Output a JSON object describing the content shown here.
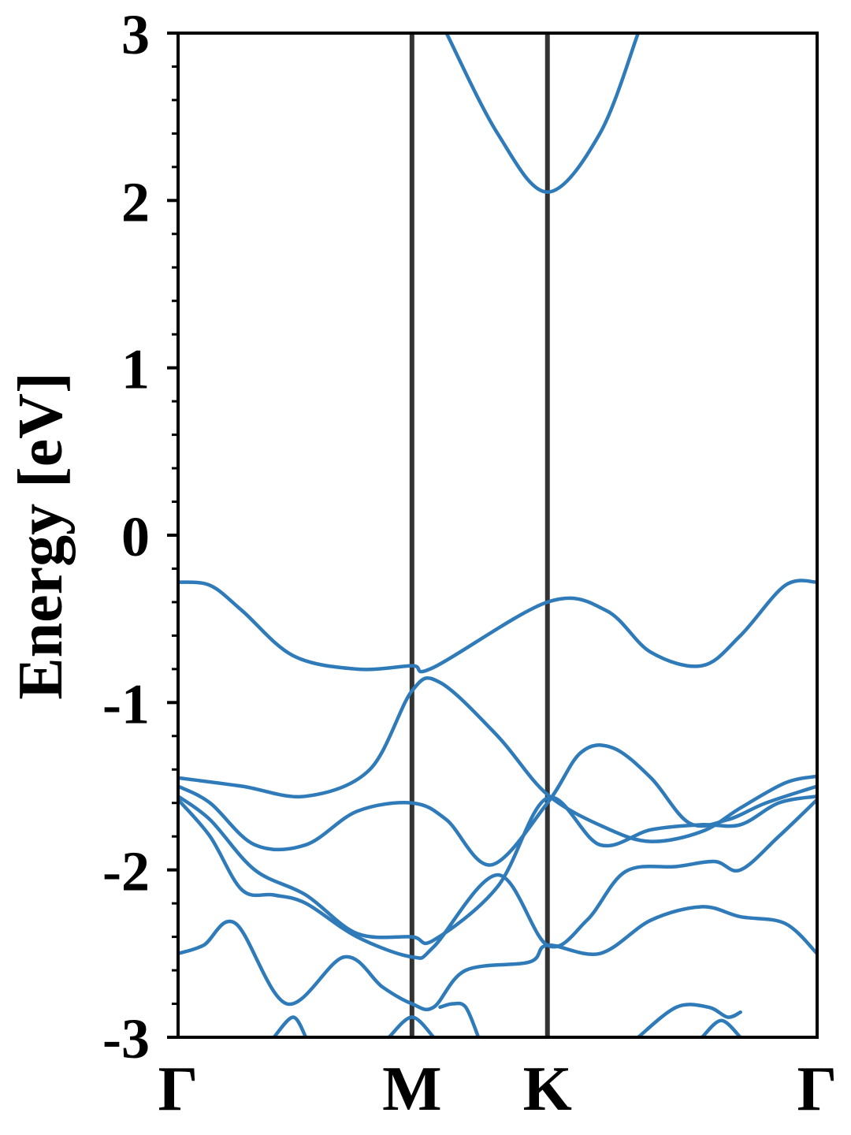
{
  "chart_data": {
    "type": "line",
    "title": "",
    "xlabel": "",
    "ylabel": "Energy [eV]",
    "ylim": [
      -3,
      3
    ],
    "y_ticks": [
      "3",
      "2",
      "1",
      "0",
      "-1",
      "-2",
      "-3"
    ],
    "k_path": [
      {
        "label": "Γ",
        "pos": 0.0
      },
      {
        "label": "M",
        "pos": 0.366
      },
      {
        "label": "K",
        "pos": 0.578
      },
      {
        "label": "Γ",
        "pos": 1.0
      }
    ],
    "grid": false,
    "colors": {
      "bands": "#2f7bba",
      "k_lines": "#333333",
      "frame": "#000000"
    },
    "series": [
      {
        "x": [
          0,
          0.05,
          0.1,
          0.18,
          0.28,
          0.366,
          0.4,
          0.578,
          0.67,
          0.74,
          0.82,
          0.88,
          0.95,
          1.0
        ],
        "values": [
          -0.28,
          -0.3,
          -0.45,
          -0.72,
          -0.8,
          -0.78,
          -0.79,
          -0.4,
          -0.45,
          -0.7,
          -0.78,
          -0.6,
          -0.3,
          -0.28
        ]
      },
      {
        "x": [
          0,
          0.1,
          0.2,
          0.3,
          0.366,
          0.41,
          0.5,
          0.578,
          0.67,
          0.74,
          0.82,
          0.88,
          0.95,
          1.0
        ],
        "values": [
          -1.45,
          -1.5,
          -1.56,
          -1.4,
          -0.93,
          -0.88,
          -1.2,
          -1.55,
          -1.75,
          -1.83,
          -1.77,
          -1.63,
          -1.48,
          -1.44
        ]
      },
      {
        "x": [
          0,
          0.05,
          0.12,
          0.2,
          0.28,
          0.366,
          0.42,
          0.49,
          0.578,
          0.63,
          0.68,
          0.74,
          0.8,
          0.86,
          0.92,
          1.0
        ],
        "values": [
          -1.5,
          -1.6,
          -1.85,
          -1.85,
          -1.65,
          -1.6,
          -1.7,
          -1.97,
          -1.6,
          -1.3,
          -1.27,
          -1.45,
          -1.72,
          -1.7,
          -1.6,
          -1.5
        ]
      },
      {
        "x": [
          0,
          0.05,
          0.12,
          0.2,
          0.28,
          0.366,
          0.4,
          0.5,
          0.578,
          0.66,
          0.74,
          0.82,
          0.88,
          0.94,
          1.0
        ],
        "values": [
          -1.56,
          -1.7,
          -2.0,
          -2.15,
          -2.38,
          -2.4,
          -2.42,
          -2.1,
          -1.57,
          -1.85,
          -1.76,
          -1.73,
          -1.73,
          -1.6,
          -1.56
        ]
      },
      {
        "x": [
          0,
          0.05,
          0.1,
          0.15,
          0.2,
          0.28,
          0.366,
          0.4,
          0.5,
          0.578,
          0.64,
          0.7,
          0.78,
          0.84,
          0.88,
          0.94,
          1.0
        ],
        "values": [
          -1.58,
          -1.8,
          -2.12,
          -2.15,
          -2.2,
          -2.4,
          -2.52,
          -2.46,
          -2.03,
          -2.45,
          -2.3,
          -2.01,
          -1.98,
          -1.95,
          -2.0,
          -1.8,
          -1.58
        ]
      },
      {
        "x": [
          0,
          0.04,
          0.09,
          0.17,
          0.26,
          0.32,
          0.366,
          0.4,
          0.45,
          0.55,
          0.578,
          0.66,
          0.74,
          0.82,
          0.88,
          0.95,
          1.0
        ],
        "values": [
          -2.5,
          -2.45,
          -2.32,
          -2.8,
          -2.52,
          -2.7,
          -2.8,
          -2.82,
          -2.6,
          -2.55,
          -2.45,
          -2.5,
          -2.3,
          -2.22,
          -2.28,
          -2.32,
          -2.5
        ]
      },
      {
        "x": [
          0.15,
          0.18,
          0.2
        ],
        "values": [
          -3.0,
          -2.88,
          -3.0
        ]
      },
      {
        "x": [
          0.33,
          0.366,
          0.4
        ],
        "values": [
          -3.0,
          -2.88,
          -3.0
        ]
      },
      {
        "x": [
          0.72,
          0.78,
          0.83,
          0.86,
          0.88
        ],
        "values": [
          -3.0,
          -2.82,
          -2.82,
          -2.88,
          -2.85
        ]
      },
      {
        "x": [
          0.82,
          0.85,
          0.88
        ],
        "values": [
          -3.0,
          -2.9,
          -3.0
        ]
      },
      {
        "x": [
          0.41,
          0.43,
          0.45,
          0.47
        ],
        "values": [
          -2.82,
          -2.8,
          -2.82,
          -3.0
        ]
      },
      {
        "x": [
          0.42,
          0.5,
          0.578,
          0.66,
          0.72
        ],
        "values": [
          3.0,
          2.4,
          2.05,
          2.4,
          3.0
        ]
      }
    ]
  }
}
